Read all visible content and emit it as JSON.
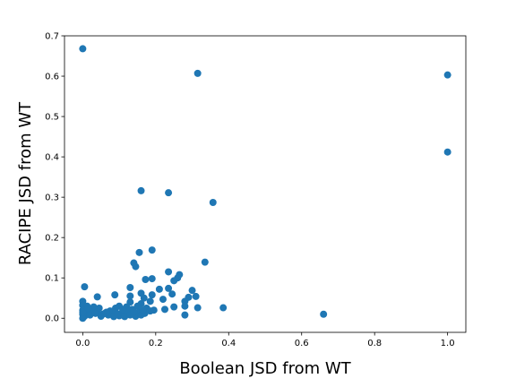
{
  "chart_data": {
    "type": "scatter",
    "xlabel": "Boolean JSD from WT",
    "ylabel": "RACIPE JSD from WT",
    "xlim": [
      -0.05,
      1.05
    ],
    "ylim": [
      -0.035,
      0.7
    ],
    "xticks": [
      "0.0",
      "0.2",
      "0.4",
      "0.6",
      "0.8",
      "1.0"
    ],
    "xtick_values": [
      0,
      0.2,
      0.4,
      0.6,
      0.8,
      1.0
    ],
    "yticks": [
      "0.0",
      "0.1",
      "0.2",
      "0.3",
      "0.4",
      "0.5",
      "0.6",
      "0.7"
    ],
    "ytick_values": [
      0,
      0.1,
      0.2,
      0.3,
      0.4,
      0.5,
      0.6,
      0.7
    ],
    "grid": false,
    "marker_color": "#1f77b4",
    "points": [
      [
        0.0,
        0.668
      ],
      [
        0.315,
        0.607
      ],
      [
        1.0,
        0.603
      ],
      [
        1.0,
        0.412
      ],
      [
        0.16,
        0.316
      ],
      [
        0.235,
        0.311
      ],
      [
        0.357,
        0.287
      ],
      [
        0.19,
        0.169
      ],
      [
        0.155,
        0.163
      ],
      [
        0.14,
        0.137
      ],
      [
        0.145,
        0.128
      ],
      [
        0.335,
        0.139
      ],
      [
        0.235,
        0.115
      ],
      [
        0.265,
        0.108
      ],
      [
        0.26,
        0.1
      ],
      [
        0.172,
        0.096
      ],
      [
        0.19,
        0.098
      ],
      [
        0.25,
        0.093
      ],
      [
        0.005,
        0.078
      ],
      [
        0.13,
        0.076
      ],
      [
        0.21,
        0.072
      ],
      [
        0.235,
        0.074
      ],
      [
        0.3,
        0.069
      ],
      [
        0.16,
        0.062
      ],
      [
        0.19,
        0.058
      ],
      [
        0.245,
        0.06
      ],
      [
        0.088,
        0.058
      ],
      [
        0.04,
        0.053
      ],
      [
        0.13,
        0.055
      ],
      [
        0.168,
        0.05
      ],
      [
        0.29,
        0.052
      ],
      [
        0.31,
        0.054
      ],
      [
        0.22,
        0.047
      ],
      [
        0.28,
        0.042
      ],
      [
        0.0,
        0.042
      ],
      [
        0.13,
        0.04
      ],
      [
        0.16,
        0.036
      ],
      [
        0.185,
        0.042
      ],
      [
        0.28,
        0.03
      ],
      [
        0.385,
        0.026
      ],
      [
        0.315,
        0.026
      ],
      [
        0.25,
        0.028
      ],
      [
        0.0,
        0.032
      ],
      [
        0.012,
        0.03
      ],
      [
        0.03,
        0.028
      ],
      [
        0.045,
        0.025
      ],
      [
        0.1,
        0.03
      ],
      [
        0.09,
        0.025
      ],
      [
        0.12,
        0.028
      ],
      [
        0.135,
        0.022
      ],
      [
        0.15,
        0.03
      ],
      [
        0.175,
        0.025
      ],
      [
        0.195,
        0.02
      ],
      [
        0.225,
        0.022
      ],
      [
        0.0,
        0.02
      ],
      [
        0.01,
        0.018
      ],
      [
        0.025,
        0.02
      ],
      [
        0.04,
        0.015
      ],
      [
        0.06,
        0.012
      ],
      [
        0.075,
        0.018
      ],
      [
        0.09,
        0.015
      ],
      [
        0.105,
        0.012
      ],
      [
        0.12,
        0.018
      ],
      [
        0.14,
        0.01
      ],
      [
        0.155,
        0.015
      ],
      [
        0.17,
        0.012
      ],
      [
        0.185,
        0.018
      ],
      [
        0.0,
        0.01
      ],
      [
        0.005,
        0.005
      ],
      [
        0.0,
        0.0
      ],
      [
        0.02,
        0.008
      ],
      [
        0.05,
        0.005
      ],
      [
        0.07,
        0.008
      ],
      [
        0.085,
        0.004
      ],
      [
        0.1,
        0.006
      ],
      [
        0.115,
        0.004
      ],
      [
        0.13,
        0.008
      ],
      [
        0.145,
        0.005
      ],
      [
        0.16,
        0.008
      ],
      [
        0.28,
        0.008
      ],
      [
        0.66,
        0.01
      ],
      [
        0.0,
        0.015
      ],
      [
        0.035,
        0.012
      ],
      [
        0.065,
        0.015
      ],
      [
        0.095,
        0.01
      ],
      [
        0.11,
        0.022
      ],
      [
        0.14,
        0.016
      ],
      [
        0.165,
        0.02
      ],
      [
        0.015,
        0.025
      ],
      [
        0.055,
        0.01
      ]
    ]
  }
}
